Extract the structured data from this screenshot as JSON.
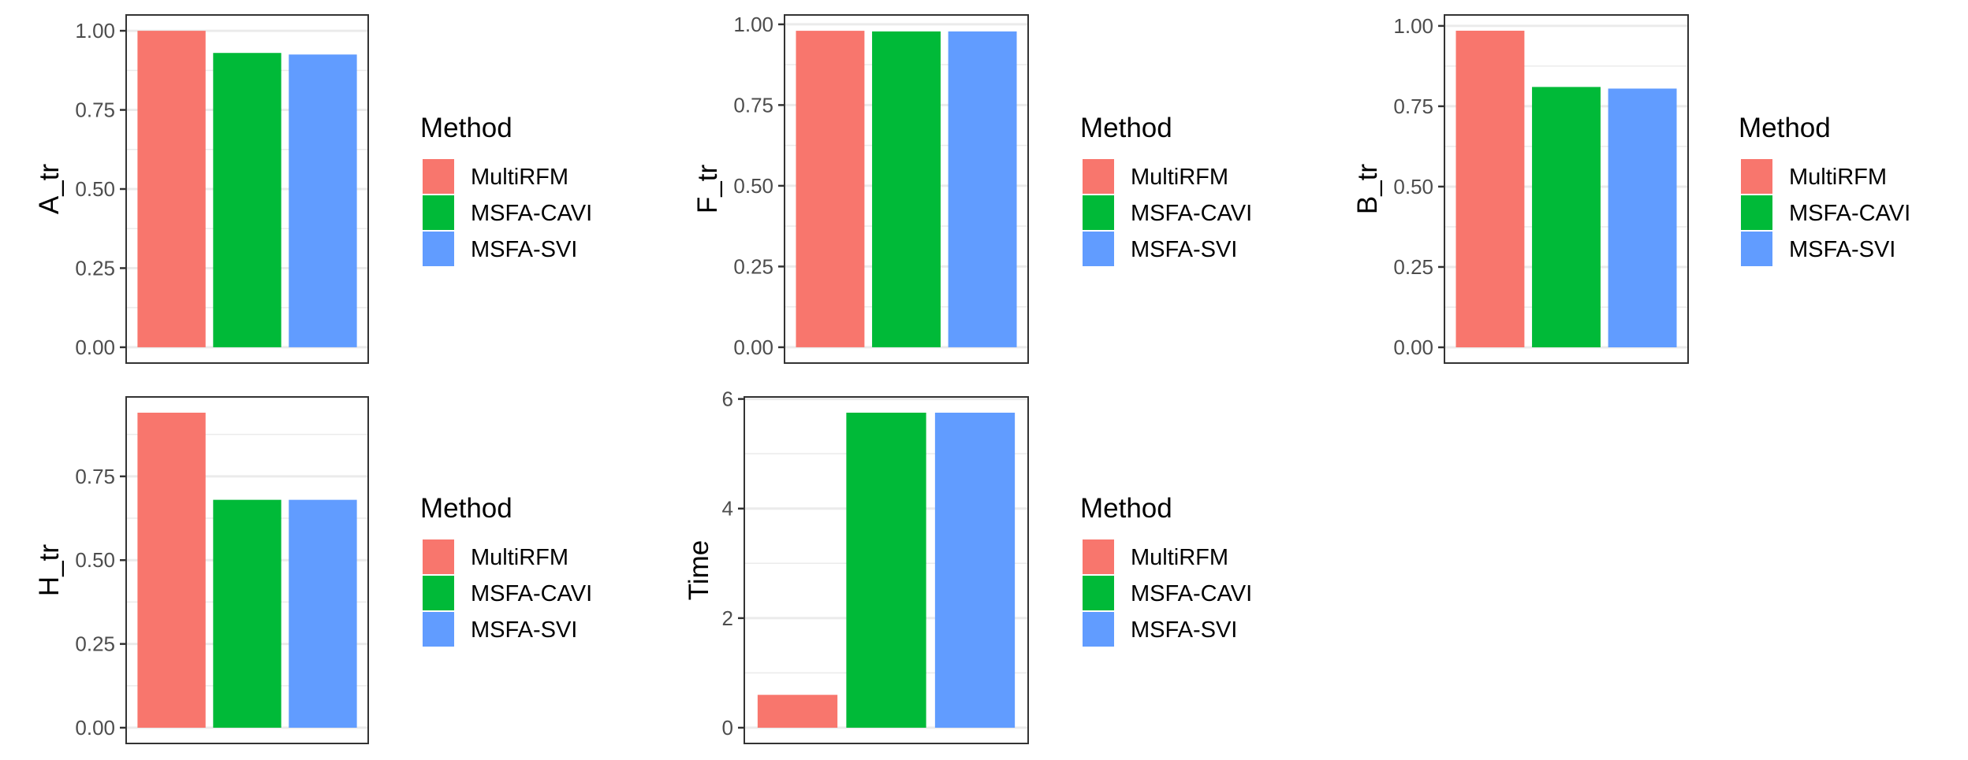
{
  "chart_data": {
    "type": "bar",
    "legend_title": "Method",
    "categories": [
      "MultiRFM",
      "MSFA-CAVI",
      "MSFA-SVI"
    ],
    "colors": [
      "#F8766D",
      "#00BA38",
      "#619CFF"
    ],
    "legend_placement": "right",
    "grid": true,
    "panels": [
      {
        "ylabel": "A_tr",
        "values": [
          1.0,
          0.93,
          0.925
        ],
        "ylim": [
          -0.05,
          1.05
        ],
        "ticks": [
          0,
          0.25,
          0.5,
          0.75,
          1.0
        ],
        "tick_labels": [
          "0.00",
          "0.25",
          "0.50",
          "0.75",
          "1.00"
        ]
      },
      {
        "ylabel": "F_tr",
        "values": [
          0.98,
          0.978,
          0.978
        ],
        "ylim": [
          -0.049,
          1.029
        ],
        "ticks": [
          0,
          0.25,
          0.5,
          0.75,
          1.0
        ],
        "tick_labels": [
          "0.00",
          "0.25",
          "0.50",
          "0.75",
          "1.00"
        ]
      },
      {
        "ylabel": "B_tr",
        "values": [
          0.985,
          0.81,
          0.805
        ],
        "ylim": [
          -0.049,
          1.034
        ],
        "ticks": [
          0,
          0.25,
          0.5,
          0.75,
          1.0
        ],
        "tick_labels": [
          "0.00",
          "0.25",
          "0.50",
          "0.75",
          "1.00"
        ]
      },
      {
        "ylabel": "H_tr",
        "values": [
          0.94,
          0.68,
          0.68
        ],
        "ylim": [
          -0.047,
          0.987
        ],
        "ticks": [
          0,
          0.25,
          0.5,
          0.75
        ],
        "tick_labels": [
          "0.00",
          "0.25",
          "0.50",
          "0.75"
        ]
      },
      {
        "ylabel": "Time",
        "values": [
          0.6,
          5.75,
          5.75
        ],
        "ylim": [
          -0.2875,
          6.0375
        ],
        "ticks": [
          0,
          2,
          4,
          6
        ],
        "tick_labels": [
          "0",
          "2",
          "4",
          "6"
        ]
      }
    ]
  }
}
